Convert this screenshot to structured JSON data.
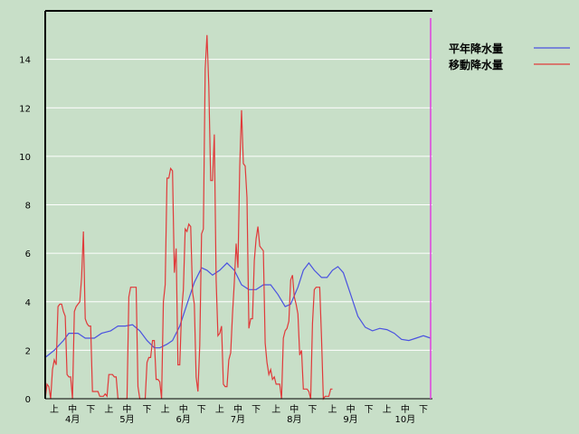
{
  "chart_data": {
    "type": "line",
    "title": "",
    "xlabel": "",
    "ylabel": "",
    "ylim": [
      0,
      16
    ],
    "y_ticks": [
      0,
      2,
      4,
      6,
      8,
      10,
      12,
      14
    ],
    "grid": "horizontal",
    "legend_placement": "top-right",
    "x_range": [
      0,
      213
    ],
    "dekad_labels": [
      {
        "x": 5,
        "label": "上"
      },
      {
        "x": 15,
        "label": "中"
      },
      {
        "x": 25,
        "label": "下"
      },
      {
        "x": 35,
        "label": "上"
      },
      {
        "x": 45,
        "label": "中"
      },
      {
        "x": 56,
        "label": "下"
      },
      {
        "x": 66,
        "label": "上"
      },
      {
        "x": 76,
        "label": "中"
      },
      {
        "x": 86,
        "label": "下"
      },
      {
        "x": 96,
        "label": "上"
      },
      {
        "x": 106,
        "label": "中"
      },
      {
        "x": 116,
        "label": "下"
      },
      {
        "x": 127,
        "label": "上"
      },
      {
        "x": 137,
        "label": "中"
      },
      {
        "x": 147,
        "label": "下"
      },
      {
        "x": 158,
        "label": "上"
      },
      {
        "x": 168,
        "label": "中"
      },
      {
        "x": 178,
        "label": "下"
      },
      {
        "x": 188,
        "label": "上"
      },
      {
        "x": 198,
        "label": "中"
      },
      {
        "x": 208,
        "label": "下"
      }
    ],
    "month_labels": [
      {
        "x": 15,
        "label": "4月"
      },
      {
        "x": 45,
        "label": "5月"
      },
      {
        "x": 76,
        "label": "6月"
      },
      {
        "x": 106,
        "label": "7月"
      },
      {
        "x": 137,
        "label": "8月"
      },
      {
        "x": 168,
        "label": "9月"
      },
      {
        "x": 198,
        "label": "10月"
      }
    ],
    "current_marker_x": 212,
    "series": [
      {
        "name": "平年降水量",
        "color": "#4a52e0",
        "points": [
          [
            0,
            1.7
          ],
          [
            5,
            2.0
          ],
          [
            10,
            2.4
          ],
          [
            13,
            2.7
          ],
          [
            18,
            2.7
          ],
          [
            22,
            2.5
          ],
          [
            27,
            2.5
          ],
          [
            31,
            2.7
          ],
          [
            36,
            2.8
          ],
          [
            40,
            3.0
          ],
          [
            44,
            3.0
          ],
          [
            48,
            3.05
          ],
          [
            52,
            2.8
          ],
          [
            56,
            2.4
          ],
          [
            60,
            2.1
          ],
          [
            63,
            2.1
          ],
          [
            67,
            2.25
          ],
          [
            70,
            2.4
          ],
          [
            74,
            3.0
          ],
          [
            78,
            3.9
          ],
          [
            82,
            4.8
          ],
          [
            86,
            5.4
          ],
          [
            89,
            5.3
          ],
          [
            92,
            5.1
          ],
          [
            96,
            5.3
          ],
          [
            100,
            5.6
          ],
          [
            104,
            5.3
          ],
          [
            108,
            4.7
          ],
          [
            112,
            4.5
          ],
          [
            116,
            4.5
          ],
          [
            120,
            4.7
          ],
          [
            124,
            4.7
          ],
          [
            128,
            4.3
          ],
          [
            132,
            3.8
          ],
          [
            135,
            3.9
          ],
          [
            139,
            4.6
          ],
          [
            142,
            5.3
          ],
          [
            145,
            5.6
          ],
          [
            148,
            5.3
          ],
          [
            152,
            5.0
          ],
          [
            155,
            5.0
          ],
          [
            158,
            5.3
          ],
          [
            161,
            5.45
          ],
          [
            164,
            5.2
          ],
          [
            168,
            4.3
          ],
          [
            172,
            3.4
          ],
          [
            176,
            2.95
          ],
          [
            180,
            2.8
          ],
          [
            184,
            2.9
          ],
          [
            188,
            2.85
          ],
          [
            192,
            2.7
          ],
          [
            196,
            2.45
          ],
          [
            200,
            2.4
          ],
          [
            204,
            2.5
          ],
          [
            208,
            2.6
          ],
          [
            212,
            2.5
          ]
        ]
      },
      {
        "name": "移動降水量",
        "color": "#e03a3a",
        "points": [
          [
            0,
            0.0
          ],
          [
            1,
            0.6
          ],
          [
            2,
            0.5
          ],
          [
            3,
            0.0
          ],
          [
            4,
            1.2
          ],
          [
            5,
            1.6
          ],
          [
            6,
            1.4
          ],
          [
            7,
            3.8
          ],
          [
            8,
            3.9
          ],
          [
            9,
            3.9
          ],
          [
            10,
            3.6
          ],
          [
            11,
            3.4
          ],
          [
            12,
            1.0
          ],
          [
            13,
            0.9
          ],
          [
            14,
            0.9
          ],
          [
            15,
            0.0
          ],
          [
            16,
            3.6
          ],
          [
            17,
            3.8
          ],
          [
            18,
            3.9
          ],
          [
            19,
            4.0
          ],
          [
            20,
            5.0
          ],
          [
            21,
            6.9
          ],
          [
            22,
            3.3
          ],
          [
            23,
            3.1
          ],
          [
            24,
            3.0
          ],
          [
            25,
            3.0
          ],
          [
            26,
            0.3
          ],
          [
            27,
            0.3
          ],
          [
            28,
            0.3
          ],
          [
            29,
            0.3
          ],
          [
            30,
            0.1
          ],
          [
            31,
            0.1
          ],
          [
            32,
            0.1
          ],
          [
            33,
            0.2
          ],
          [
            34,
            0.1
          ],
          [
            35,
            1.0
          ],
          [
            36,
            1.0
          ],
          [
            37,
            1.0
          ],
          [
            38,
            0.9
          ],
          [
            39,
            0.9
          ],
          [
            40,
            0.0
          ],
          [
            41,
            0.0
          ],
          [
            42,
            0.0
          ],
          [
            43,
            0.0
          ],
          [
            44,
            0.0
          ],
          [
            45,
            0.0
          ],
          [
            46,
            4.2
          ],
          [
            47,
            4.6
          ],
          [
            48,
            4.6
          ],
          [
            49,
            4.6
          ],
          [
            50,
            4.6
          ],
          [
            51,
            0.5
          ],
          [
            52,
            0.0
          ],
          [
            53,
            0.0
          ],
          [
            54,
            0.0
          ],
          [
            55,
            0.0
          ],
          [
            56,
            1.5
          ],
          [
            57,
            1.7
          ],
          [
            58,
            1.7
          ],
          [
            59,
            2.4
          ],
          [
            60,
            2.4
          ],
          [
            61,
            0.8
          ],
          [
            62,
            0.8
          ],
          [
            63,
            0.7
          ],
          [
            64,
            0.0
          ],
          [
            65,
            4.0
          ],
          [
            66,
            4.7
          ],
          [
            67,
            9.1
          ],
          [
            68,
            9.1
          ],
          [
            69,
            9.5
          ],
          [
            70,
            9.4
          ],
          [
            71,
            5.2
          ],
          [
            72,
            6.2
          ],
          [
            73,
            1.4
          ],
          [
            74,
            1.4
          ],
          [
            75,
            3.6
          ],
          [
            76,
            4.5
          ],
          [
            77,
            7.0
          ],
          [
            78,
            6.9
          ],
          [
            79,
            7.2
          ],
          [
            80,
            7.1
          ],
          [
            81,
            4.4
          ],
          [
            82,
            3.9
          ],
          [
            83,
            0.9
          ],
          [
            84,
            0.3
          ],
          [
            85,
            2.2
          ],
          [
            86,
            6.8
          ],
          [
            87,
            7.0
          ],
          [
            88,
            13.6
          ],
          [
            89,
            15.0
          ],
          [
            90,
            12.9
          ],
          [
            91,
            9.0
          ],
          [
            92,
            9.0
          ],
          [
            93,
            10.9
          ],
          [
            94,
            4.9
          ],
          [
            95,
            2.6
          ],
          [
            96,
            2.7
          ],
          [
            97,
            3.0
          ],
          [
            98,
            0.6
          ],
          [
            99,
            0.5
          ],
          [
            100,
            0.5
          ],
          [
            101,
            1.6
          ],
          [
            102,
            1.9
          ],
          [
            103,
            3.5
          ],
          [
            104,
            4.8
          ],
          [
            105,
            6.4
          ],
          [
            106,
            5.4
          ],
          [
            107,
            9.6
          ],
          [
            108,
            11.9
          ],
          [
            109,
            9.7
          ],
          [
            110,
            9.6
          ],
          [
            111,
            8.3
          ],
          [
            112,
            2.9
          ],
          [
            113,
            3.3
          ],
          [
            114,
            3.3
          ],
          [
            115,
            5.7
          ],
          [
            116,
            6.6
          ],
          [
            117,
            7.1
          ],
          [
            118,
            6.3
          ],
          [
            119,
            6.2
          ],
          [
            120,
            6.1
          ],
          [
            121,
            2.3
          ],
          [
            122,
            1.5
          ],
          [
            123,
            1.0
          ],
          [
            124,
            1.2
          ],
          [
            125,
            0.8
          ],
          [
            126,
            0.9
          ],
          [
            127,
            0.6
          ],
          [
            128,
            0.6
          ],
          [
            129,
            0.6
          ],
          [
            130,
            0.0
          ],
          [
            131,
            2.5
          ],
          [
            132,
            2.8
          ],
          [
            133,
            2.9
          ],
          [
            134,
            3.2
          ],
          [
            135,
            4.9
          ],
          [
            136,
            5.1
          ],
          [
            137,
            4.2
          ],
          [
            138,
            3.9
          ],
          [
            139,
            3.5
          ],
          [
            140,
            1.8
          ],
          [
            141,
            2.0
          ],
          [
            142,
            0.4
          ],
          [
            143,
            0.4
          ],
          [
            144,
            0.4
          ],
          [
            145,
            0.3
          ],
          [
            146,
            0.0
          ],
          [
            147,
            3.1
          ],
          [
            148,
            4.5
          ],
          [
            149,
            4.6
          ],
          [
            150,
            4.6
          ],
          [
            151,
            4.6
          ],
          [
            152,
            2.5
          ],
          [
            153,
            0.0
          ],
          [
            154,
            0.1
          ],
          [
            155,
            0.1
          ],
          [
            156,
            0.1
          ],
          [
            157,
            0.4
          ],
          [
            158,
            0.4
          ]
        ]
      }
    ]
  }
}
